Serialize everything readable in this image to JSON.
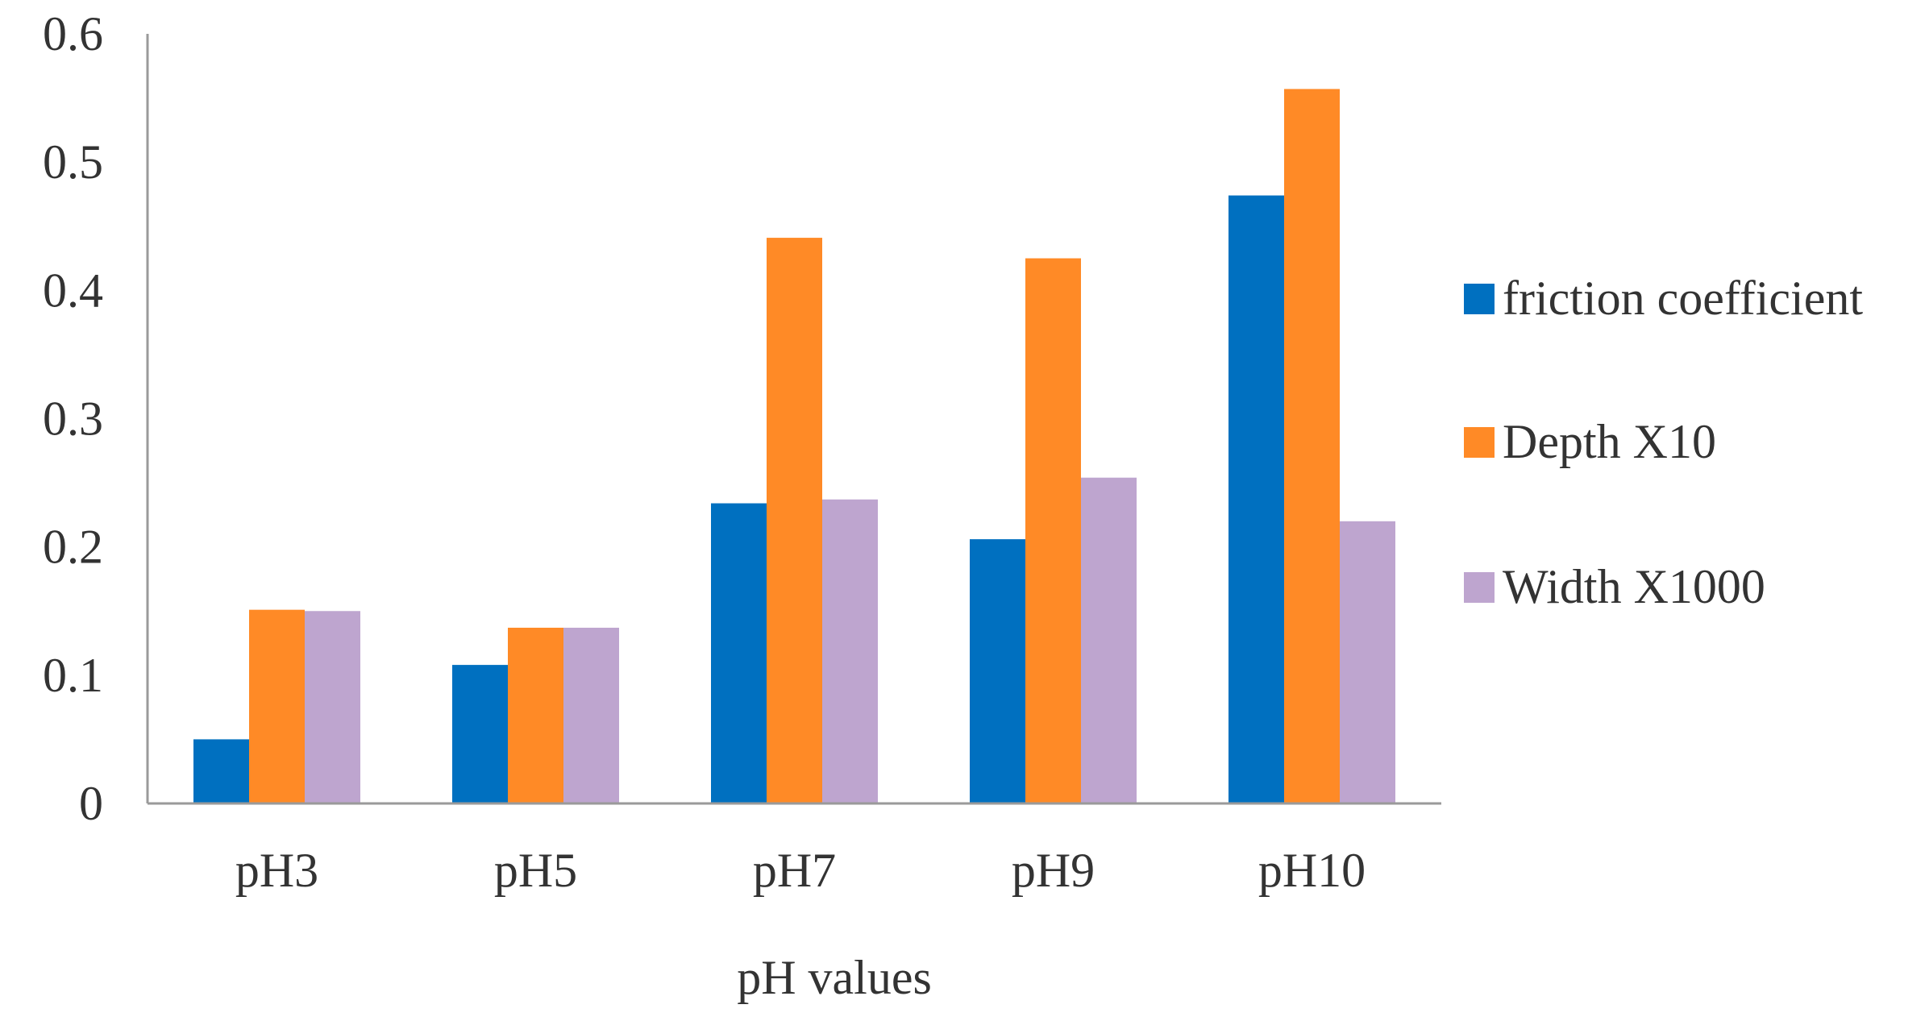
{
  "chart_data": {
    "type": "bar",
    "title": "",
    "xlabel": "pH values",
    "ylabel": "",
    "categories": [
      "pH3",
      "pH5",
      "pH7",
      "pH9",
      "pH10"
    ],
    "ylim": [
      0,
      0.6
    ],
    "yticks": [
      0,
      0.1,
      0.2,
      0.3,
      0.4,
      0.5,
      0.6
    ],
    "ytick_labels": [
      "0",
      "0.1",
      "0.2",
      "0.3",
      "0.4",
      "0.5",
      "0.6"
    ],
    "grid": false,
    "legend_position": "right",
    "series": [
      {
        "name": "friction coefficient",
        "color": "#0070C0",
        "values": [
          0.05,
          0.108,
          0.234,
          0.206,
          0.474
        ]
      },
      {
        "name": "Depth X10",
        "color": "#FF8A26",
        "values": [
          0.151,
          0.137,
          0.441,
          0.425,
          0.557
        ]
      },
      {
        "name": "Width X1000",
        "color": "#BEA5CF",
        "values": [
          0.15,
          0.137,
          0.237,
          0.254,
          0.22
        ]
      }
    ]
  }
}
